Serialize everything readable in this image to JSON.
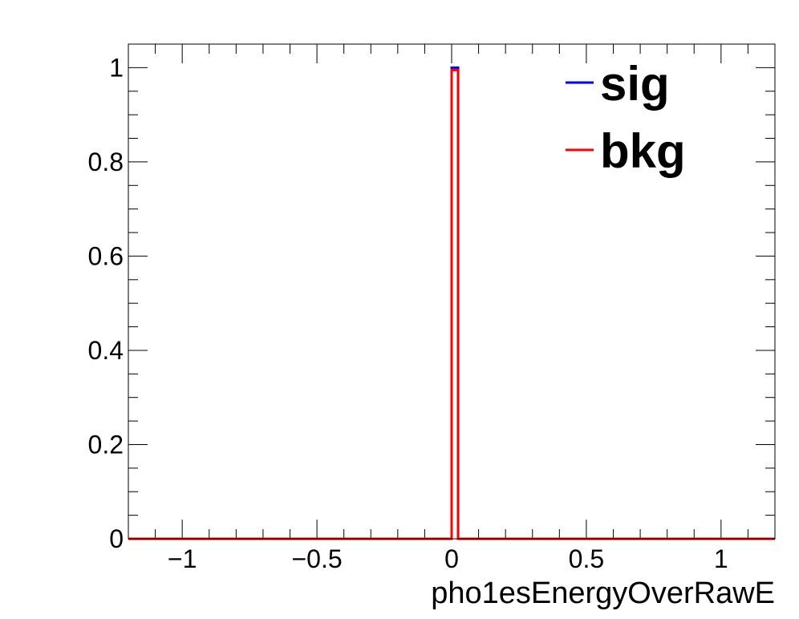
{
  "chart_data": {
    "type": "line",
    "xlabel": "pho1esEnergyOverRawE",
    "ylabel": "",
    "xlim": [
      -1.2,
      1.2
    ],
    "ylim": [
      0,
      1.05
    ],
    "x_ticks": [
      -1,
      -0.5,
      0,
      0.5,
      1
    ],
    "x_tick_labels": [
      "−1",
      "−0.5",
      "0",
      "0.5",
      "1"
    ],
    "y_ticks": [
      0,
      0.2,
      0.4,
      0.6,
      0.8,
      1
    ],
    "y_tick_labels": [
      "0",
      "0.2",
      "0.4",
      "0.6",
      "0.8",
      "1"
    ],
    "grid": false,
    "legend_placement": "top-right",
    "series": [
      {
        "name": "sig",
        "color": "#0000ff",
        "bin_edges": [
          -1.2,
          0.0,
          0.024,
          1.2
        ],
        "values": [
          0,
          1.0,
          0
        ]
      },
      {
        "name": "bkg",
        "color": "#ff0000",
        "bin_edges": [
          -1.2,
          0.0,
          0.024,
          1.2
        ],
        "values": [
          0,
          0.995,
          0
        ]
      }
    ]
  }
}
